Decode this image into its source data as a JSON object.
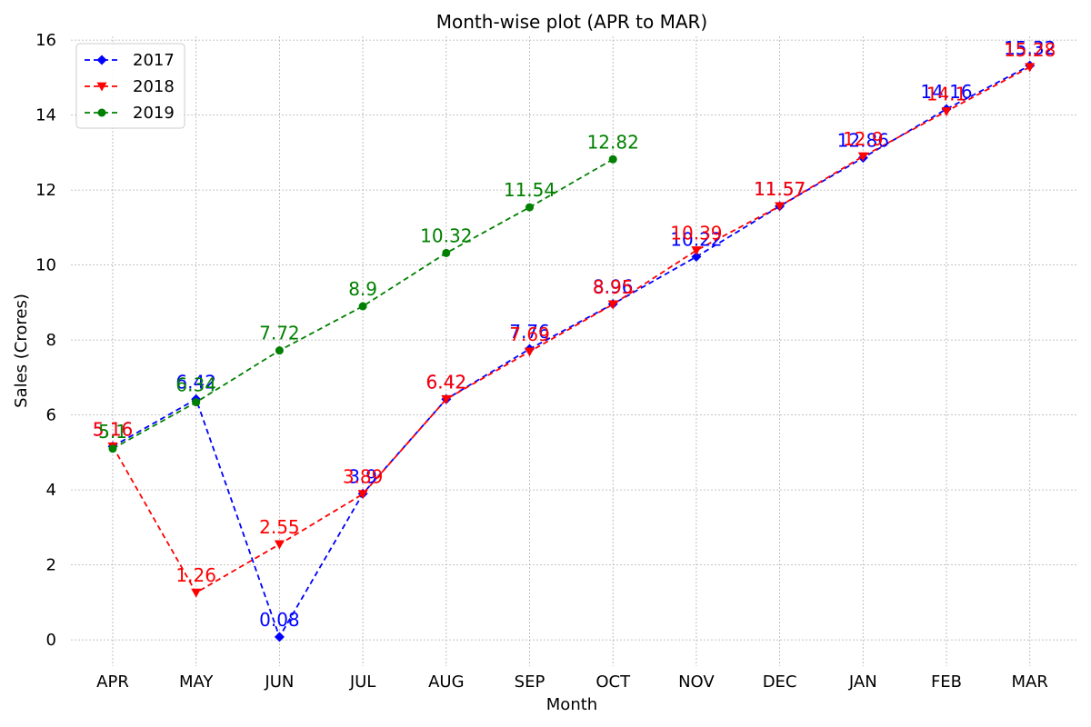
{
  "chart_data": {
    "type": "line",
    "title": "Month-wise plot (APR to MAR)",
    "xlabel": "Month",
    "ylabel": "Sales (Crores)",
    "categories": [
      "APR",
      "MAY",
      "JUN",
      "JUL",
      "AUG",
      "SEP",
      "OCT",
      "NOV",
      "DEC",
      "JAN",
      "FEB",
      "MAR"
    ],
    "ylim": [
      -0.7,
      16.1
    ],
    "yticks": [
      0,
      2,
      4,
      6,
      8,
      10,
      12,
      14,
      16
    ],
    "grid": true,
    "legend_position": "top-left",
    "series": [
      {
        "name": "2017",
        "color": "#0000ff",
        "marker": "diamond",
        "line_style": "dashed",
        "values": [
          5.16,
          6.42,
          0.08,
          3.9,
          6.42,
          7.76,
          8.96,
          10.22,
          11.57,
          12.86,
          14.16,
          15.32
        ],
        "labels": [
          "5.16",
          "6.42",
          "0.08",
          "3.9",
          "6.42",
          "7.76",
          "8.96",
          "10.22",
          "11.57",
          "12.86",
          "14.16",
          "15.32"
        ]
      },
      {
        "name": "2018",
        "color": "#ff0000",
        "marker": "triangle-down",
        "line_style": "dashed",
        "values": [
          5.16,
          1.26,
          2.55,
          3.89,
          6.42,
          7.69,
          8.95,
          10.39,
          11.57,
          12.9,
          14.1,
          15.28
        ],
        "labels": [
          "5.16",
          "1.26",
          "2.55",
          "3.89",
          "6.42",
          "7.69",
          "8.95",
          "10.39",
          "11.57",
          "12.9",
          "14.1",
          "15.28"
        ]
      },
      {
        "name": "2019",
        "color": "#008000",
        "marker": "circle",
        "line_style": "dashed",
        "values": [
          5.1,
          6.34,
          7.72,
          8.9,
          10.32,
          11.54,
          12.82,
          null,
          null,
          null,
          null,
          null
        ],
        "labels": [
          "5.1",
          "6.34",
          "7.72",
          "8.9",
          "10.32",
          "11.54",
          "12.82",
          null,
          null,
          null,
          null,
          null
        ]
      }
    ]
  }
}
